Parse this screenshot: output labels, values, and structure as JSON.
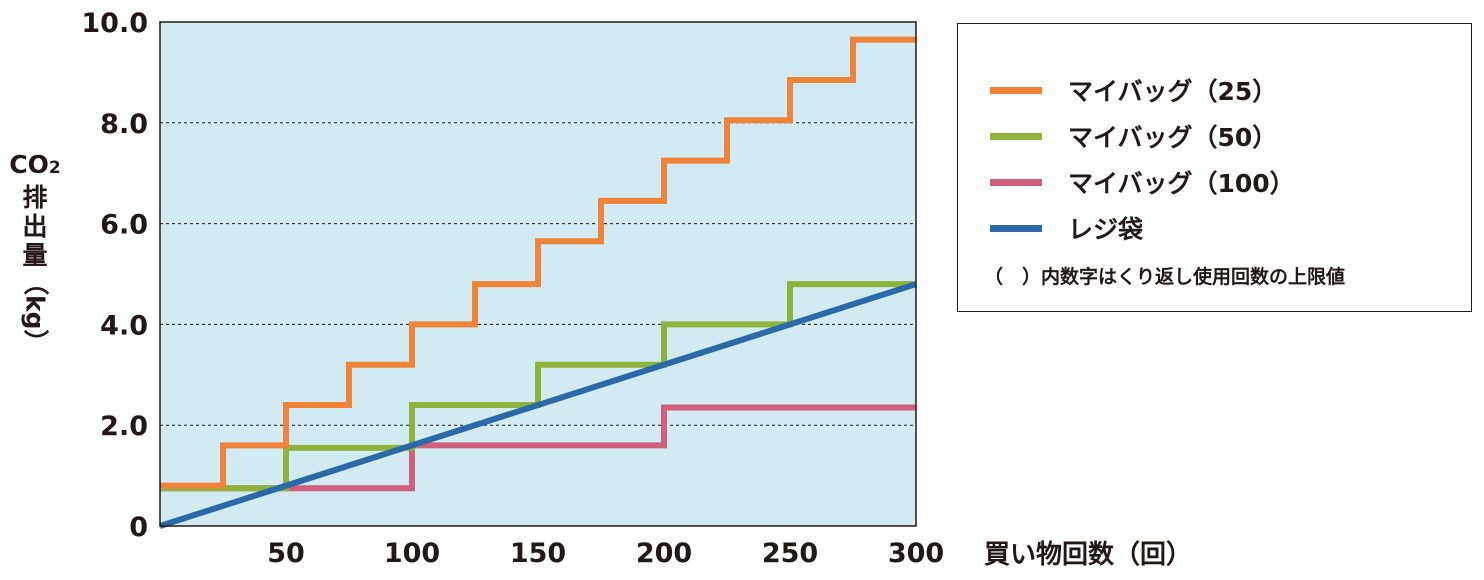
{
  "chart_data": {
    "type": "line",
    "ylabel_parts": [
      "CO",
      "2",
      "排",
      "出",
      "量",
      "（kg）"
    ],
    "xlabel": "買い物回数（回）",
    "xlim": [
      0,
      300
    ],
    "ylim": [
      0,
      10
    ],
    "x_ticks": [
      "50",
      "100",
      "150",
      "200",
      "250",
      "300"
    ],
    "y_ticks": [
      "0",
      "2.0",
      "4.0",
      "6.0",
      "8.0",
      "10.0"
    ],
    "grid": true,
    "plot_background": "#d2ebf3",
    "legend_position": "right",
    "series": [
      {
        "name": "マイバッグ（25）",
        "color": "#f0833a",
        "step": "after",
        "points": [
          [
            0,
            0.8
          ],
          [
            25,
            1.6
          ],
          [
            50,
            2.4
          ],
          [
            75,
            3.2
          ],
          [
            100,
            4.0
          ],
          [
            125,
            4.8
          ],
          [
            150,
            5.65
          ],
          [
            175,
            6.45
          ],
          [
            200,
            7.25
          ],
          [
            225,
            8.05
          ],
          [
            250,
            8.85
          ],
          [
            275,
            9.65
          ],
          [
            300,
            9.65
          ]
        ]
      },
      {
        "name": "マイバッグ（50）",
        "color": "#8fb23c",
        "step": "after",
        "points": [
          [
            0,
            0.75
          ],
          [
            50,
            1.55
          ],
          [
            100,
            2.4
          ],
          [
            150,
            3.2
          ],
          [
            200,
            4.0
          ],
          [
            250,
            4.8
          ],
          [
            300,
            4.8
          ]
        ]
      },
      {
        "name": "マイバッグ（100）",
        "color": "#d0607e",
        "step": "after",
        "points": [
          [
            0,
            0.75
          ],
          [
            100,
            1.6
          ],
          [
            200,
            2.35
          ],
          [
            300,
            2.35
          ]
        ]
      },
      {
        "name": "レジ袋",
        "color": "#2a6aa8",
        "step": "none",
        "points": [
          [
            0,
            0
          ],
          [
            300,
            4.8
          ]
        ]
      }
    ],
    "legend_note": "（　）内数字はくり返し使用回数の上限値"
  }
}
